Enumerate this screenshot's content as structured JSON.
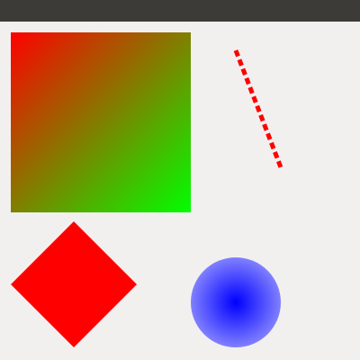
{
  "window": {
    "title": ""
  },
  "shapes": {
    "gradient_square": {
      "color_top_left": "#ff0000",
      "color_bottom_right": "#00ff00"
    },
    "dashed_line": {
      "color": "#ff0000"
    },
    "diamond": {
      "color": "#ff0000"
    },
    "circle": {
      "color_center": "#0000ff",
      "color_edge": "#8080ff"
    }
  },
  "colors": {
    "titlebar": "#3c3b37",
    "canvas_background": "#f2f0ef"
  }
}
